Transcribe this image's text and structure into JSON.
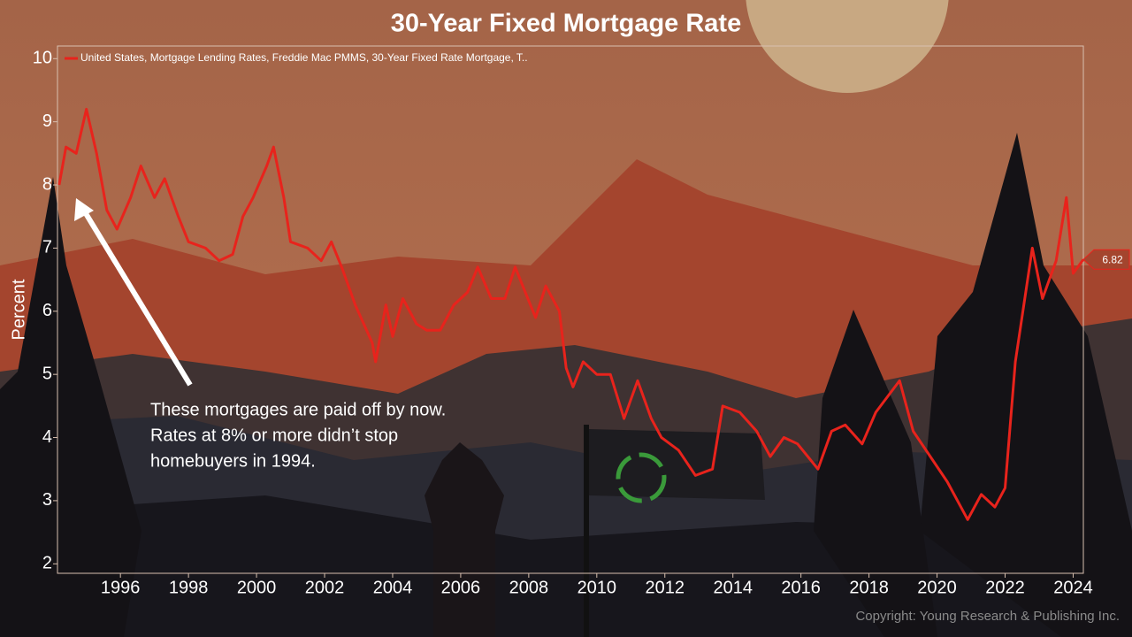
{
  "chart_data": {
    "type": "line",
    "title": "30-Year Fixed Mortgage Rate",
    "y_label": "Percent",
    "annotation": [
      "These mortgages are paid off by now.",
      "Rates at 8% or more didn’t stop",
      "homebuyers in 1994."
    ],
    "copyright": "Copyright: Young Research & Publishing Inc.",
    "x": [
      1994.2,
      1994.4,
      1994.7,
      1995.0,
      1995.3,
      1995.6,
      1995.9,
      1996.3,
      1996.6,
      1997.0,
      1997.3,
      1997.7,
      1998.0,
      1998.5,
      1998.9,
      1999.3,
      1999.6,
      1999.9,
      2000.3,
      2000.5,
      2000.8,
      2001.0,
      2001.5,
      2001.9,
      2002.2,
      2002.5,
      2002.9,
      2003.4,
      2003.5,
      2003.8,
      2004.0,
      2004.3,
      2004.7,
      2005.0,
      2005.4,
      2005.8,
      2006.2,
      2006.5,
      2006.9,
      2007.3,
      2007.6,
      2007.9,
      2008.2,
      2008.5,
      2008.9,
      2009.1,
      2009.3,
      2009.6,
      2010.0,
      2010.4,
      2010.8,
      2011.2,
      2011.6,
      2011.9,
      2012.4,
      2012.9,
      2013.4,
      2013.7,
      2014.2,
      2014.7,
      2015.1,
      2015.5,
      2015.9,
      2016.5,
      2016.9,
      2017.3,
      2017.8,
      2018.2,
      2018.9,
      2019.3,
      2019.8,
      2020.3,
      2020.9,
      2021.3,
      2021.7,
      2022.0,
      2022.3,
      2022.8,
      2023.1,
      2023.5,
      2023.8,
      2024.0,
      2024.3
    ],
    "series": [
      {
        "name": "United States, Mortgage Lending Rates, Freddie Mac PMMS, 30-Year Fixed Rate Mortgage, T..",
        "color": "#e8231c",
        "values": [
          8.0,
          8.6,
          8.5,
          9.2,
          8.5,
          7.6,
          7.3,
          7.8,
          8.3,
          7.8,
          8.1,
          7.5,
          7.1,
          7.0,
          6.8,
          6.9,
          7.5,
          7.8,
          8.3,
          8.6,
          7.8,
          7.1,
          7.0,
          6.8,
          7.1,
          6.7,
          6.1,
          5.5,
          5.2,
          6.1,
          5.6,
          6.2,
          5.8,
          5.7,
          5.7,
          6.1,
          6.3,
          6.7,
          6.2,
          6.2,
          6.7,
          6.3,
          5.9,
          6.4,
          6.0,
          5.1,
          4.8,
          5.2,
          5.0,
          5.0,
          4.3,
          4.9,
          4.3,
          4.0,
          3.8,
          3.4,
          3.5,
          4.5,
          4.4,
          4.1,
          3.7,
          4.0,
          3.9,
          3.5,
          4.1,
          4.2,
          3.9,
          4.4,
          4.9,
          4.1,
          3.7,
          3.3,
          2.7,
          3.1,
          2.9,
          3.2,
          5.2,
          7.0,
          6.2,
          6.8,
          7.8,
          6.6,
          6.82
        ]
      }
    ],
    "xlim": [
      1994.15,
      2024.3
    ],
    "xticks": [
      1996,
      1998,
      2000,
      2002,
      2004,
      2006,
      2008,
      2010,
      2012,
      2014,
      2016,
      2018,
      2020,
      2022,
      2024
    ],
    "ylim": [
      1.85,
      10.2
    ],
    "yticks": [
      2,
      3,
      4,
      5,
      6,
      7,
      8,
      9,
      10
    ]
  }
}
